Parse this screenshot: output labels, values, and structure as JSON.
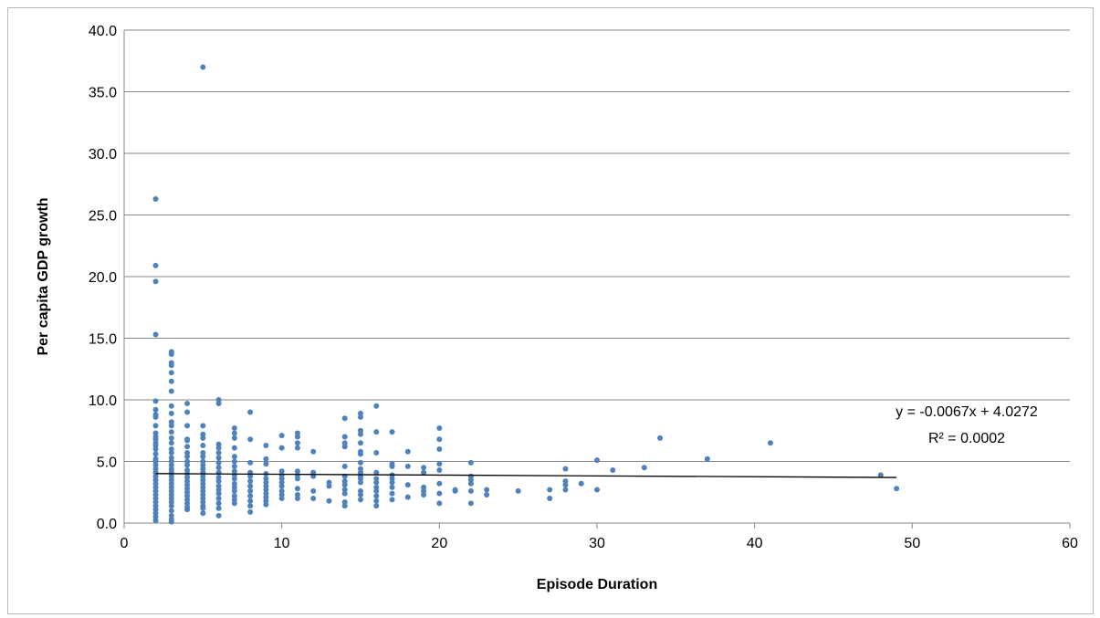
{
  "chart_data": {
    "type": "scatter",
    "title": "",
    "xlabel": "Episode Duration",
    "ylabel": "Per capita GDP growth",
    "xlim": [
      0,
      60
    ],
    "ylim": [
      0,
      40
    ],
    "x_ticks": [
      "0",
      "10",
      "20",
      "30",
      "40",
      "50",
      "60"
    ],
    "y_ticks": [
      "0.0",
      "5.0",
      "10.0",
      "15.0",
      "20.0",
      "25.0",
      "30.0",
      "35.0",
      "40.0"
    ],
    "grid": "horizontal",
    "legend": "none",
    "point_color": "#4f81bd",
    "trendline": {
      "type": "linear",
      "slope": -0.0067,
      "intercept": 4.0272,
      "x_range": [
        2,
        49
      ],
      "color": "#000000",
      "equation_label": "y = -0.0067x + 4.0272",
      "r2_label": "R² = 0.0002"
    },
    "series": [
      {
        "points": [
          [
            2,
            26.3
          ],
          [
            2,
            20.9
          ],
          [
            2,
            19.6
          ],
          [
            2,
            15.3
          ],
          [
            2,
            9.9
          ],
          [
            2,
            9.2
          ],
          [
            2,
            8.8
          ],
          [
            2,
            8.6
          ],
          [
            2,
            7.9
          ],
          [
            2,
            7.3
          ],
          [
            2,
            7.0
          ],
          [
            2,
            6.8
          ],
          [
            2,
            6.5
          ],
          [
            2,
            6.3
          ],
          [
            2,
            6.0
          ],
          [
            2,
            5.6
          ],
          [
            2,
            5.2
          ],
          [
            2,
            5.0
          ],
          [
            2,
            4.7
          ],
          [
            2,
            4.4
          ],
          [
            2,
            4.1
          ],
          [
            2,
            3.8
          ],
          [
            2,
            3.5
          ],
          [
            2,
            3.2
          ],
          [
            2,
            2.9
          ],
          [
            2,
            2.6
          ],
          [
            2,
            2.3
          ],
          [
            2,
            2.0
          ],
          [
            2,
            1.7
          ],
          [
            2,
            1.4
          ],
          [
            2,
            1.1
          ],
          [
            2,
            0.8
          ],
          [
            2,
            0.5
          ],
          [
            2,
            0.2
          ],
          [
            3,
            13.9
          ],
          [
            3,
            13.7
          ],
          [
            3,
            13.0
          ],
          [
            3,
            12.8
          ],
          [
            3,
            12.2
          ],
          [
            3,
            11.5
          ],
          [
            3,
            10.7
          ],
          [
            3,
            9.5
          ],
          [
            3,
            8.9
          ],
          [
            3,
            8.2
          ],
          [
            3,
            7.9
          ],
          [
            3,
            7.4
          ],
          [
            3,
            6.9
          ],
          [
            3,
            6.5
          ],
          [
            3,
            6.0
          ],
          [
            3,
            5.7
          ],
          [
            3,
            5.3
          ],
          [
            3,
            5.0
          ],
          [
            3,
            4.7
          ],
          [
            3,
            4.4
          ],
          [
            3,
            4.1
          ],
          [
            3,
            3.8
          ],
          [
            3,
            3.5
          ],
          [
            3,
            3.2
          ],
          [
            3,
            2.9
          ],
          [
            3,
            2.6
          ],
          [
            3,
            2.3
          ],
          [
            3,
            2.0
          ],
          [
            3,
            1.7
          ],
          [
            3,
            1.4
          ],
          [
            3,
            1.0
          ],
          [
            3,
            0.6
          ],
          [
            3,
            0.3
          ],
          [
            3,
            0.1
          ],
          [
            4,
            9.7
          ],
          [
            4,
            9.0
          ],
          [
            4,
            7.9
          ],
          [
            4,
            6.8
          ],
          [
            4,
            6.7
          ],
          [
            4,
            6.2
          ],
          [
            4,
            5.7
          ],
          [
            4,
            5.4
          ],
          [
            4,
            5.0
          ],
          [
            4,
            4.7
          ],
          [
            4,
            4.3
          ],
          [
            4,
            4.0
          ],
          [
            4,
            3.7
          ],
          [
            4,
            3.4
          ],
          [
            4,
            3.1
          ],
          [
            4,
            2.8
          ],
          [
            4,
            2.5
          ],
          [
            4,
            2.2
          ],
          [
            4,
            1.9
          ],
          [
            4,
            1.6
          ],
          [
            4,
            1.3
          ],
          [
            4,
            1.1
          ],
          [
            5,
            37.0
          ],
          [
            5,
            7.9
          ],
          [
            5,
            7.2
          ],
          [
            5,
            6.9
          ],
          [
            5,
            6.3
          ],
          [
            5,
            5.7
          ],
          [
            5,
            5.4
          ],
          [
            5,
            5.0
          ],
          [
            5,
            4.7
          ],
          [
            5,
            4.4
          ],
          [
            5,
            4.1
          ],
          [
            5,
            3.8
          ],
          [
            5,
            3.5
          ],
          [
            5,
            3.2
          ],
          [
            5,
            2.9
          ],
          [
            5,
            2.6
          ],
          [
            5,
            2.3
          ],
          [
            5,
            2.0
          ],
          [
            5,
            1.7
          ],
          [
            5,
            1.4
          ],
          [
            5,
            1.2
          ],
          [
            5,
            0.8
          ],
          [
            6,
            10.0
          ],
          [
            6,
            9.7
          ],
          [
            6,
            6.4
          ],
          [
            6,
            6.1
          ],
          [
            6,
            5.7
          ],
          [
            6,
            5.3
          ],
          [
            6,
            4.9
          ],
          [
            6,
            4.5
          ],
          [
            6,
            4.1
          ],
          [
            6,
            3.7
          ],
          [
            6,
            3.4
          ],
          [
            6,
            3.0
          ],
          [
            6,
            2.7
          ],
          [
            6,
            2.4
          ],
          [
            6,
            2.0
          ],
          [
            6,
            1.6
          ],
          [
            6,
            1.2
          ],
          [
            6,
            0.6
          ],
          [
            7,
            7.7
          ],
          [
            7,
            7.3
          ],
          [
            7,
            6.9
          ],
          [
            7,
            6.1
          ],
          [
            7,
            5.4
          ],
          [
            7,
            5.0
          ],
          [
            7,
            4.6
          ],
          [
            7,
            4.2
          ],
          [
            7,
            3.9
          ],
          [
            7,
            3.6
          ],
          [
            7,
            3.2
          ],
          [
            7,
            2.9
          ],
          [
            7,
            2.6
          ],
          [
            7,
            2.2
          ],
          [
            7,
            1.9
          ],
          [
            7,
            1.6
          ],
          [
            8,
            9.0
          ],
          [
            8,
            6.8
          ],
          [
            8,
            4.9
          ],
          [
            8,
            4.1
          ],
          [
            8,
            3.8
          ],
          [
            8,
            3.4
          ],
          [
            8,
            3.0
          ],
          [
            8,
            2.6
          ],
          [
            8,
            2.2
          ],
          [
            8,
            1.8
          ],
          [
            8,
            1.4
          ],
          [
            8,
            0.9
          ],
          [
            9,
            6.3
          ],
          [
            9,
            5.2
          ],
          [
            9,
            4.8
          ],
          [
            9,
            4.0
          ],
          [
            9,
            3.6
          ],
          [
            9,
            3.3
          ],
          [
            9,
            3.0
          ],
          [
            9,
            2.7
          ],
          [
            9,
            2.4
          ],
          [
            9,
            2.1
          ],
          [
            9,
            1.8
          ],
          [
            9,
            1.5
          ],
          [
            10,
            7.1
          ],
          [
            10,
            6.1
          ],
          [
            10,
            4.2
          ],
          [
            10,
            3.9
          ],
          [
            10,
            3.6
          ],
          [
            10,
            3.3
          ],
          [
            10,
            3.0
          ],
          [
            10,
            2.6
          ],
          [
            10,
            2.3
          ],
          [
            10,
            2.0
          ],
          [
            11,
            7.3
          ],
          [
            11,
            7.0
          ],
          [
            11,
            6.5
          ],
          [
            11,
            6.1
          ],
          [
            11,
            4.2
          ],
          [
            11,
            3.9
          ],
          [
            11,
            3.6
          ],
          [
            11,
            2.8
          ],
          [
            11,
            2.3
          ],
          [
            11,
            2.0
          ],
          [
            12,
            5.8
          ],
          [
            12,
            4.1
          ],
          [
            12,
            3.8
          ],
          [
            12,
            2.6
          ],
          [
            12,
            2.0
          ],
          [
            13,
            3.3
          ],
          [
            13,
            3.0
          ],
          [
            13,
            1.8
          ],
          [
            14,
            8.5
          ],
          [
            14,
            7.0
          ],
          [
            14,
            6.5
          ],
          [
            14,
            6.2
          ],
          [
            14,
            4.6
          ],
          [
            14,
            3.8
          ],
          [
            14,
            3.4
          ],
          [
            14,
            3.1
          ],
          [
            14,
            2.7
          ],
          [
            14,
            2.4
          ],
          [
            14,
            1.7
          ],
          [
            14,
            1.4
          ],
          [
            15,
            8.9
          ],
          [
            15,
            8.6
          ],
          [
            15,
            7.5
          ],
          [
            15,
            7.2
          ],
          [
            15,
            6.5
          ],
          [
            15,
            5.8
          ],
          [
            15,
            5.6
          ],
          [
            15,
            4.9
          ],
          [
            15,
            4.4
          ],
          [
            15,
            4.1
          ],
          [
            15,
            3.8
          ],
          [
            15,
            3.6
          ],
          [
            15,
            3.3
          ],
          [
            15,
            2.6
          ],
          [
            15,
            2.3
          ],
          [
            15,
            1.9
          ],
          [
            16,
            9.5
          ],
          [
            16,
            7.4
          ],
          [
            16,
            5.7
          ],
          [
            16,
            4.1
          ],
          [
            16,
            3.6
          ],
          [
            16,
            3.3
          ],
          [
            16,
            2.9
          ],
          [
            16,
            2.6
          ],
          [
            16,
            2.2
          ],
          [
            16,
            1.8
          ],
          [
            16,
            1.4
          ],
          [
            17,
            7.4
          ],
          [
            17,
            4.8
          ],
          [
            17,
            4.6
          ],
          [
            17,
            3.9
          ],
          [
            17,
            3.6
          ],
          [
            17,
            3.3
          ],
          [
            17,
            2.9
          ],
          [
            17,
            2.4
          ],
          [
            17,
            1.9
          ],
          [
            18,
            5.8
          ],
          [
            18,
            4.6
          ],
          [
            18,
            3.1
          ],
          [
            18,
            2.1
          ],
          [
            19,
            4.5
          ],
          [
            19,
            4.1
          ],
          [
            19,
            2.9
          ],
          [
            19,
            2.6
          ],
          [
            19,
            2.3
          ],
          [
            20,
            7.7
          ],
          [
            20,
            6.8
          ],
          [
            20,
            6.0
          ],
          [
            20,
            4.8
          ],
          [
            20,
            4.3
          ],
          [
            20,
            3.2
          ],
          [
            20,
            2.4
          ],
          [
            20,
            1.6
          ],
          [
            21,
            2.7
          ],
          [
            21,
            2.6
          ],
          [
            22,
            4.9
          ],
          [
            22,
            3.8
          ],
          [
            22,
            3.5
          ],
          [
            22,
            3.2
          ],
          [
            22,
            2.6
          ],
          [
            22,
            1.6
          ],
          [
            23,
            2.7
          ],
          [
            23,
            2.3
          ],
          [
            25,
            2.6
          ],
          [
            27,
            2.7
          ],
          [
            27,
            2.0
          ],
          [
            28,
            4.4
          ],
          [
            28,
            3.4
          ],
          [
            28,
            3.1
          ],
          [
            28,
            2.7
          ],
          [
            29,
            3.2
          ],
          [
            30,
            5.1
          ],
          [
            30,
            2.7
          ],
          [
            31,
            4.3
          ],
          [
            33,
            4.5
          ],
          [
            34,
            6.9
          ],
          [
            37,
            5.2
          ],
          [
            41,
            6.5
          ],
          [
            48,
            3.9
          ],
          [
            49,
            2.8
          ]
        ]
      }
    ]
  }
}
